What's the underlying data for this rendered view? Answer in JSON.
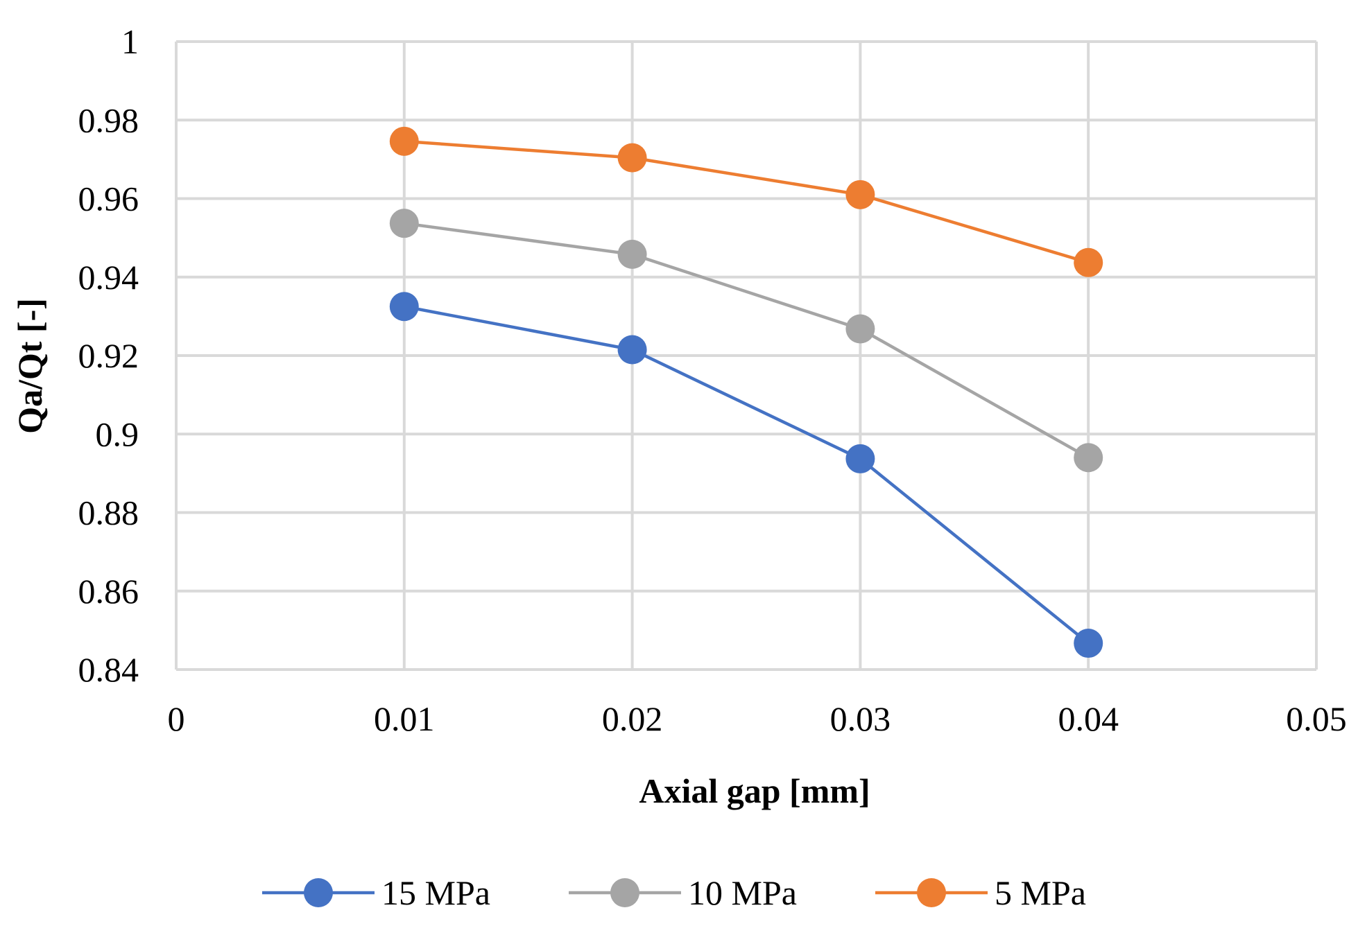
{
  "chart_data": {
    "type": "line",
    "title": "",
    "xlabel": "Axial gap [mm]",
    "ylabel": "Qa/Qt [-]",
    "xlim": [
      0,
      0.05
    ],
    "ylim": [
      0.84,
      1
    ],
    "x_ticks": [
      "0",
      "0.01",
      "0.02",
      "0.03",
      "0.04",
      "0.05"
    ],
    "y_ticks": [
      "0.84",
      "0.86",
      "0.88",
      "0.9",
      "0.92",
      "0.94",
      "0.96",
      "0.98",
      "1"
    ],
    "x_tick_values": [
      0,
      0.01,
      0.02,
      0.03,
      0.04,
      0.05
    ],
    "y_tick_values": [
      0.84,
      0.86,
      0.88,
      0.9,
      0.92,
      0.94,
      0.96,
      0.98,
      1
    ],
    "grid": true,
    "legend_position": "bottom",
    "x": [
      0.01,
      0.02,
      0.03,
      0.04
    ],
    "series": [
      {
        "name": "15 MPa",
        "color": "#4472C4",
        "values": [
          0.9325,
          0.9215,
          0.8937,
          0.8467
        ]
      },
      {
        "name": "10 MPa",
        "color": "#A5A5A5",
        "values": [
          0.9537,
          0.9458,
          0.9268,
          0.894
        ]
      },
      {
        "name": "5 MPa",
        "color": "#ED7D31",
        "values": [
          0.9746,
          0.9704,
          0.961,
          0.9437
        ]
      }
    ]
  }
}
